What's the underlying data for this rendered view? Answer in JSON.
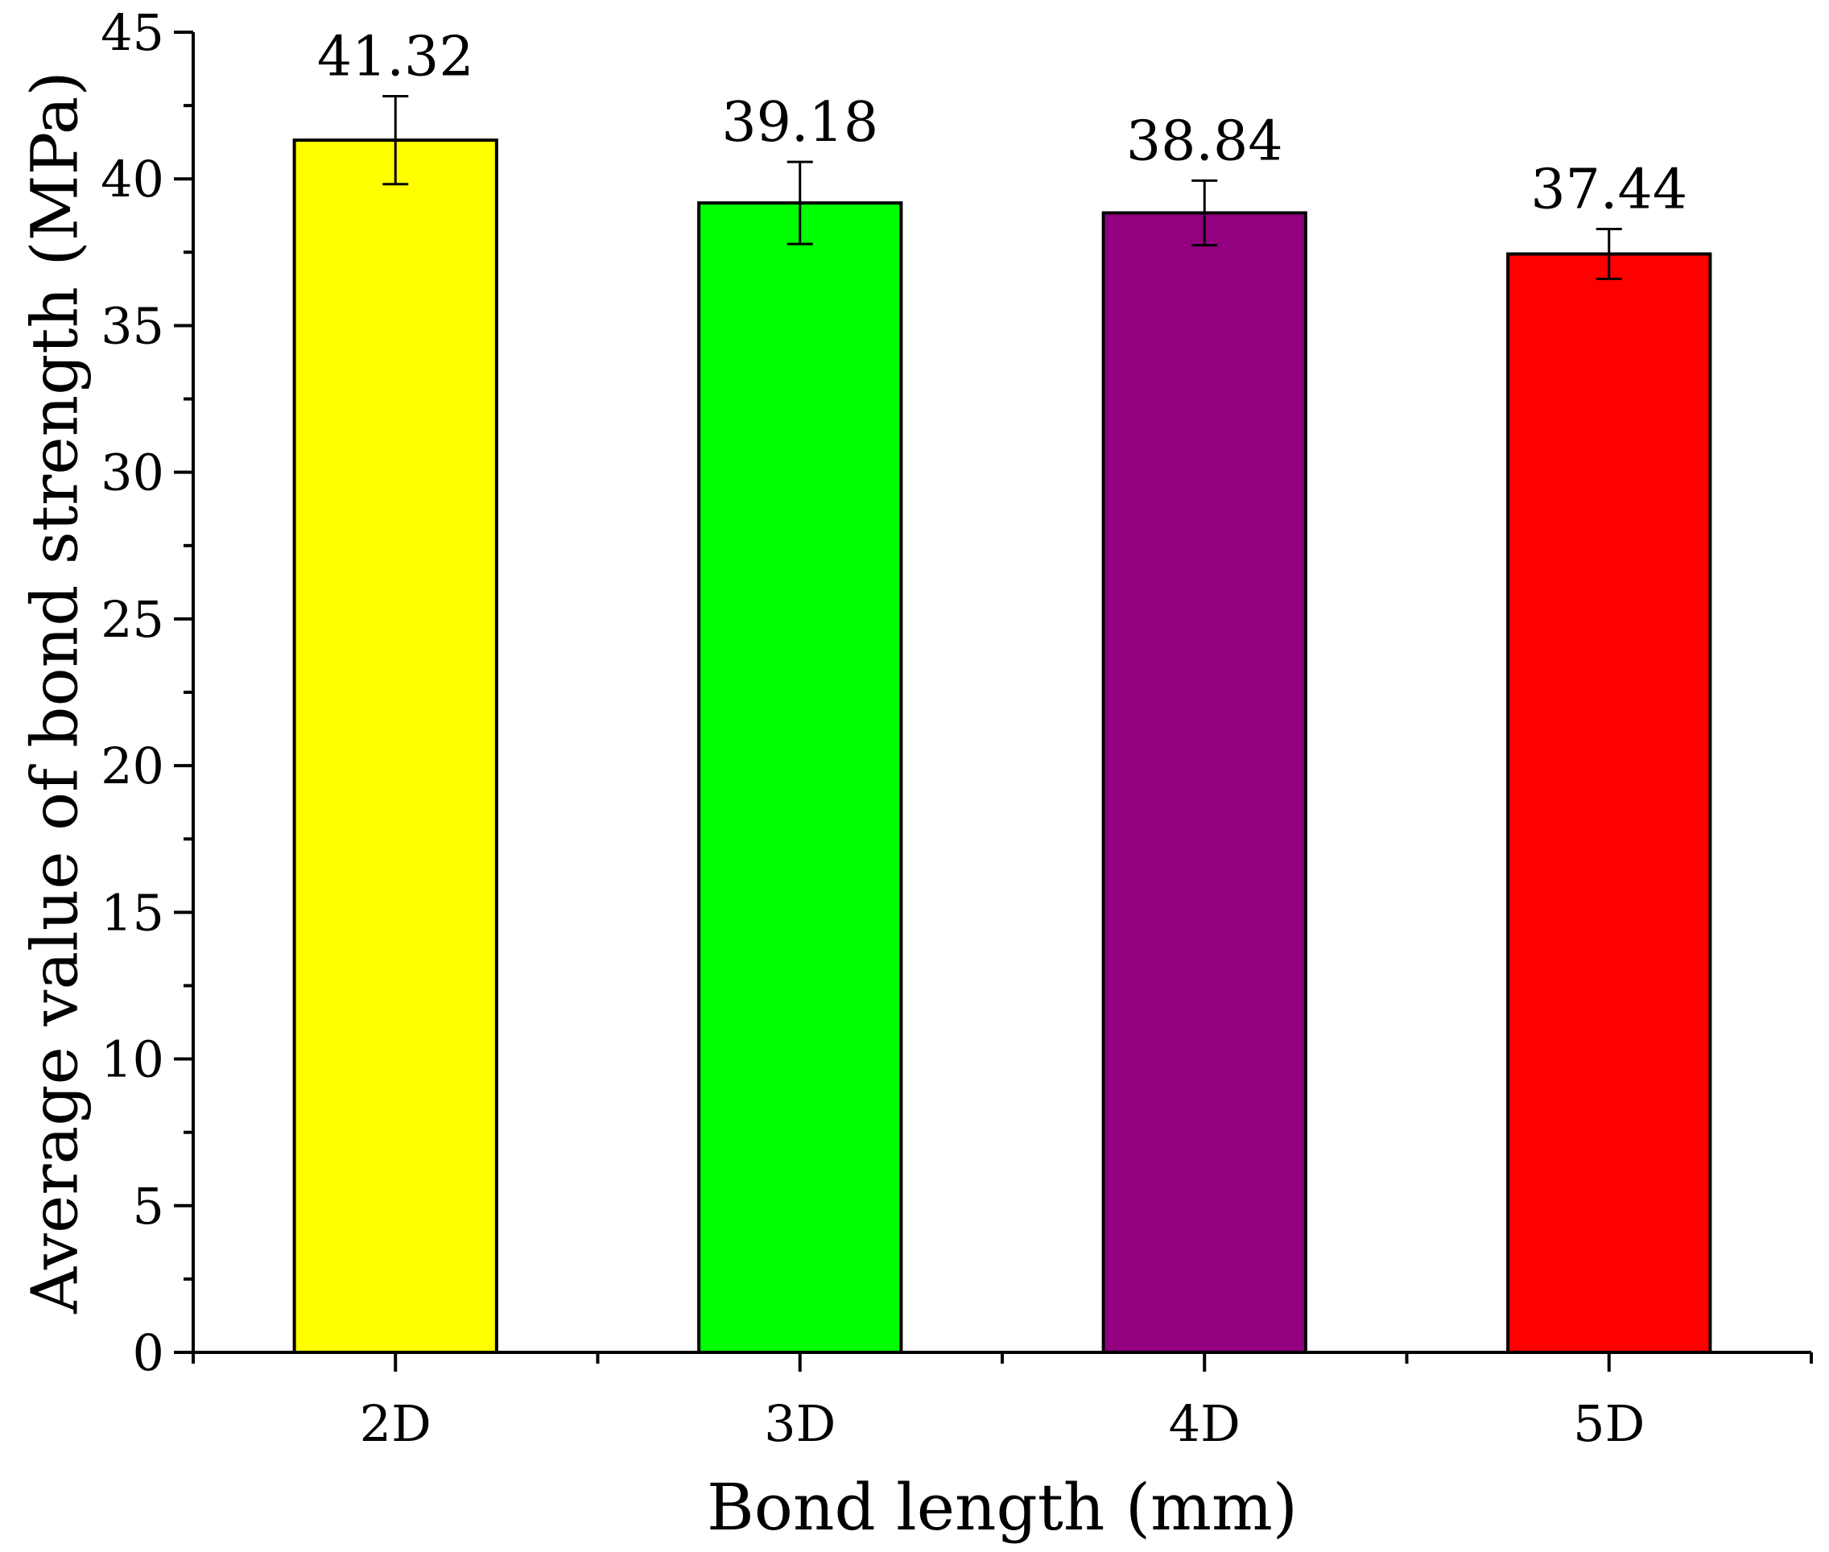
{
  "chart_data": {
    "type": "bar",
    "xlabel": "Bond length (mm)",
    "ylabel": "Average value of bond strength (MPa)",
    "categories": [
      "2D",
      "3D",
      "4D",
      "5D"
    ],
    "values": [
      41.32,
      39.18,
      38.84,
      37.44
    ],
    "errors": [
      1.5,
      1.4,
      1.1,
      0.85
    ],
    "data_labels": [
      "41.32",
      "39.18",
      "38.84",
      "37.44"
    ],
    "bar_colors": [
      "#FFFF00",
      "#00FF00",
      "#930080",
      "#FF0000"
    ],
    "ylim": [
      0,
      45
    ],
    "yticks": [
      "0",
      "5",
      "10",
      "15",
      "20",
      "25",
      "30",
      "35",
      "40",
      "45"
    ],
    "grid": false,
    "legend": "none"
  }
}
